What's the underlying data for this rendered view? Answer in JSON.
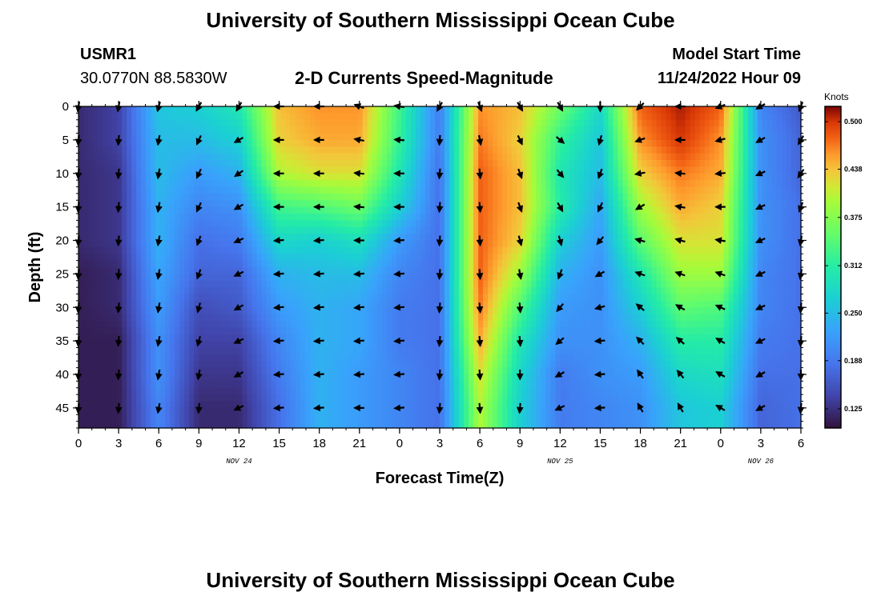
{
  "header": {
    "title": "University of Southern Mississippi Ocean Cube",
    "station": "USMR1",
    "coordinates": "30.0770N  88.5830W",
    "subtitle": "2-D Currents Speed-Magnitude",
    "model_start_label": "Model Start Time",
    "model_start_value": "11/24/2022 Hour 09"
  },
  "footer": {
    "title": "University of Southern Mississippi Ocean Cube"
  },
  "chart_data": {
    "type": "heatmap",
    "title": "2-D Currents Speed-Magnitude",
    "xlabel": "Forecast Time(Z)",
    "ylabel": "Depth (ft)",
    "x_hours": [
      0,
      3,
      6,
      9,
      12,
      15,
      18,
      21,
      24,
      27,
      30,
      33,
      36,
      39,
      42,
      45,
      48,
      51,
      54
    ],
    "x_tick_labels": [
      "0",
      "3",
      "6",
      "9",
      "12",
      "15",
      "18",
      "21",
      "0",
      "3",
      "6",
      "9",
      "12",
      "15",
      "18",
      "21",
      "0",
      "3",
      "6"
    ],
    "xlim": [
      0,
      54
    ],
    "date_labels": [
      {
        "text": "NOV 24",
        "hour": 12
      },
      {
        "text": "NOV 25",
        "hour": 36
      },
      {
        "text": "NOV 26",
        "hour": 51
      }
    ],
    "depths_ft": [
      0,
      5,
      10,
      15,
      20,
      25,
      30,
      35,
      40,
      45
    ],
    "y_tick_labels": [
      "0",
      "5",
      "10",
      "15",
      "20",
      "25",
      "30",
      "35",
      "40",
      "45"
    ],
    "ylim": [
      0,
      48
    ],
    "colorbar": {
      "unit": "Knots",
      "range": [
        0.1,
        0.52
      ],
      "tick_values": [
        0.125,
        0.188,
        0.25,
        0.312,
        0.375,
        0.438,
        0.5
      ],
      "tick_labels": [
        "0.125",
        "0.188",
        "0.250",
        "0.312",
        "0.375",
        "0.438",
        "0.500"
      ]
    },
    "speed_knots": [
      [
        0.12,
        0.12,
        0.12,
        0.12,
        0.12,
        0.11,
        0.11,
        0.11,
        0.11,
        0.11
      ],
      [
        0.14,
        0.14,
        0.13,
        0.13,
        0.13,
        0.12,
        0.12,
        0.11,
        0.11,
        0.11
      ],
      [
        0.26,
        0.25,
        0.25,
        0.24,
        0.24,
        0.23,
        0.22,
        0.21,
        0.21,
        0.2
      ],
      [
        0.27,
        0.25,
        0.22,
        0.2,
        0.18,
        0.17,
        0.15,
        0.14,
        0.13,
        0.12
      ],
      [
        0.3,
        0.27,
        0.24,
        0.21,
        0.19,
        0.17,
        0.16,
        0.14,
        0.13,
        0.12
      ],
      [
        0.44,
        0.43,
        0.4,
        0.33,
        0.28,
        0.24,
        0.22,
        0.2,
        0.19,
        0.18
      ],
      [
        0.46,
        0.45,
        0.42,
        0.34,
        0.27,
        0.25,
        0.24,
        0.24,
        0.24,
        0.24
      ],
      [
        0.46,
        0.45,
        0.42,
        0.36,
        0.29,
        0.25,
        0.23,
        0.23,
        0.22,
        0.22
      ],
      [
        0.33,
        0.32,
        0.3,
        0.27,
        0.22,
        0.2,
        0.19,
        0.19,
        0.2,
        0.2
      ],
      [
        0.19,
        0.19,
        0.18,
        0.18,
        0.18,
        0.18,
        0.18,
        0.18,
        0.18,
        0.18
      ],
      [
        0.46,
        0.47,
        0.48,
        0.48,
        0.48,
        0.48,
        0.47,
        0.45,
        0.42,
        0.4
      ],
      [
        0.44,
        0.43,
        0.44,
        0.44,
        0.43,
        0.39,
        0.34,
        0.3,
        0.28,
        0.27
      ],
      [
        0.36,
        0.32,
        0.3,
        0.31,
        0.27,
        0.24,
        0.22,
        0.21,
        0.19,
        0.19
      ],
      [
        0.28,
        0.26,
        0.25,
        0.23,
        0.22,
        0.21,
        0.21,
        0.21,
        0.21,
        0.2
      ],
      [
        0.48,
        0.46,
        0.43,
        0.39,
        0.35,
        0.3,
        0.27,
        0.24,
        0.22,
        0.21
      ],
      [
        0.51,
        0.5,
        0.47,
        0.45,
        0.42,
        0.39,
        0.35,
        0.31,
        0.28,
        0.26
      ],
      [
        0.48,
        0.46,
        0.45,
        0.43,
        0.42,
        0.39,
        0.34,
        0.31,
        0.29,
        0.27
      ],
      [
        0.2,
        0.21,
        0.21,
        0.21,
        0.21,
        0.2,
        0.2,
        0.19,
        0.18,
        0.17
      ],
      [
        0.16,
        0.17,
        0.17,
        0.18,
        0.18,
        0.18,
        0.18,
        0.18,
        0.18,
        0.18
      ]
    ],
    "direction_deg": [
      [
        190,
        185,
        185,
        185,
        185,
        185,
        185,
        185,
        185,
        185
      ],
      [
        190,
        185,
        185,
        185,
        185,
        185,
        185,
        185,
        185,
        185
      ],
      [
        195,
        190,
        190,
        190,
        190,
        190,
        190,
        190,
        190,
        190
      ],
      [
        210,
        205,
        205,
        205,
        200,
        200,
        195,
        195,
        190,
        185
      ],
      [
        210,
        240,
        235,
        240,
        245,
        245,
        240,
        245,
        240,
        245
      ],
      [
        270,
        270,
        270,
        270,
        265,
        265,
        265,
        265,
        265,
        265
      ],
      [
        270,
        270,
        270,
        270,
        265,
        265,
        265,
        265,
        265,
        265
      ],
      [
        290,
        280,
        275,
        275,
        270,
        265,
        265,
        265,
        265,
        270
      ],
      [
        280,
        275,
        270,
        270,
        265,
        265,
        265,
        265,
        265,
        265
      ],
      [
        210,
        185,
        185,
        185,
        185,
        185,
        185,
        185,
        185,
        185
      ],
      [
        160,
        170,
        175,
        175,
        175,
        175,
        175,
        175,
        175,
        175
      ],
      [
        150,
        155,
        160,
        160,
        165,
        170,
        175,
        175,
        180,
        185
      ],
      [
        150,
        130,
        140,
        150,
        165,
        200,
        220,
        230,
        240,
        245
      ],
      [
        180,
        195,
        200,
        205,
        220,
        240,
        255,
        265,
        265,
        265
      ],
      [
        225,
        250,
        260,
        240,
        285,
        290,
        310,
        315,
        325,
        330
      ],
      [
        270,
        270,
        275,
        280,
        285,
        290,
        300,
        310,
        320,
        330
      ],
      [
        250,
        255,
        265,
        270,
        280,
        290,
        295,
        300,
        300,
        300
      ],
      [
        240,
        240,
        245,
        245,
        245,
        245,
        245,
        245,
        240,
        240
      ],
      [
        200,
        210,
        215,
        200,
        190,
        190,
        185,
        185,
        180,
        185
      ]
    ]
  }
}
